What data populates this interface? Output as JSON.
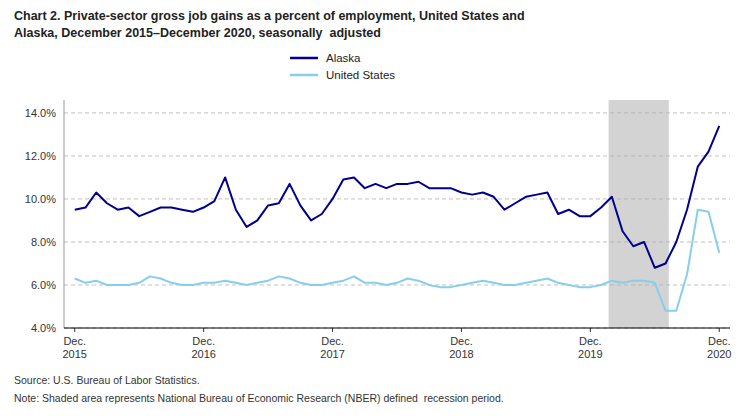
{
  "chart_data": {
    "type": "line",
    "title": "Chart 2. Private-sector gross job gains as a percent of employment, United States and\nAlaska, December 2015–December 2020, seasonally  adjusted",
    "annotations": [
      "Source: U.S. Bureau of Labor Statistics.",
      "Note: Shaded area represents National Bureau of Economic Research (NBER) defined  recession period."
    ],
    "categories": [
      "Dec.\n2015",
      null,
      null,
      null,
      null,
      null,
      null,
      null,
      null,
      null,
      null,
      null,
      "Dec.\n2016",
      null,
      null,
      null,
      null,
      null,
      null,
      null,
      null,
      null,
      null,
      null,
      "Dec.\n2017",
      null,
      null,
      null,
      null,
      null,
      null,
      null,
      null,
      null,
      null,
      null,
      "Dec.\n2018",
      null,
      null,
      null,
      null,
      null,
      null,
      null,
      null,
      null,
      null,
      null,
      "Dec.\n2019",
      null,
      null,
      null,
      null,
      null,
      null,
      null,
      null,
      null,
      null,
      null,
      "Dec.\n2020"
    ],
    "series": [
      {
        "name": "Alaska",
        "color": "#00008B",
        "values": [
          9.5,
          9.6,
          10.3,
          9.8,
          9.5,
          9.6,
          9.2,
          9.4,
          9.6,
          9.6,
          9.5,
          9.4,
          9.6,
          9.9,
          11.0,
          9.5,
          8.7,
          9.0,
          9.7,
          9.8,
          10.7,
          9.7,
          9.0,
          9.3,
          10.0,
          10.9,
          11.0,
          10.5,
          10.7,
          10.5,
          10.7,
          10.7,
          10.8,
          10.5,
          10.5,
          10.5,
          10.3,
          10.2,
          10.3,
          10.1,
          9.5,
          9.8,
          10.1,
          10.2,
          10.3,
          9.3,
          9.5,
          9.2,
          9.2,
          9.6,
          10.1,
          8.5,
          7.8,
          8.0,
          6.8,
          7.0,
          8.0,
          9.5,
          11.5,
          12.2,
          13.4
        ]
      },
      {
        "name": "United States",
        "color": "#87CEEB",
        "values": [
          6.3,
          6.1,
          6.2,
          6.0,
          6.0,
          6.0,
          6.1,
          6.4,
          6.3,
          6.1,
          6.0,
          6.0,
          6.1,
          6.1,
          6.2,
          6.1,
          6.0,
          6.1,
          6.2,
          6.4,
          6.3,
          6.1,
          6.0,
          6.0,
          6.1,
          6.2,
          6.4,
          6.1,
          6.1,
          6.0,
          6.1,
          6.3,
          6.2,
          6.0,
          5.9,
          5.9,
          6.0,
          6.1,
          6.2,
          6.1,
          6.0,
          6.0,
          6.1,
          6.2,
          6.3,
          6.1,
          6.0,
          5.9,
          5.9,
          6.0,
          6.2,
          6.1,
          6.2,
          6.2,
          6.1,
          4.8,
          4.8,
          6.5,
          9.5,
          9.4,
          7.5
        ]
      }
    ],
    "recession": {
      "start": 50,
      "end": 55,
      "color": "#D3D3D3"
    },
    "ylim": [
      4.0,
      14.6
    ],
    "yticks": [
      {
        "value": 4.0,
        "label": "4.0%"
      },
      {
        "value": 6.0,
        "label": "6.0%"
      },
      {
        "value": 8.0,
        "label": "8.0%"
      },
      {
        "value": 10.0,
        "label": "10.0%"
      },
      {
        "value": 12.0,
        "label": "12.0%"
      },
      {
        "value": 14.0,
        "label": "14.0%"
      }
    ],
    "grid": true,
    "legend": "top"
  }
}
